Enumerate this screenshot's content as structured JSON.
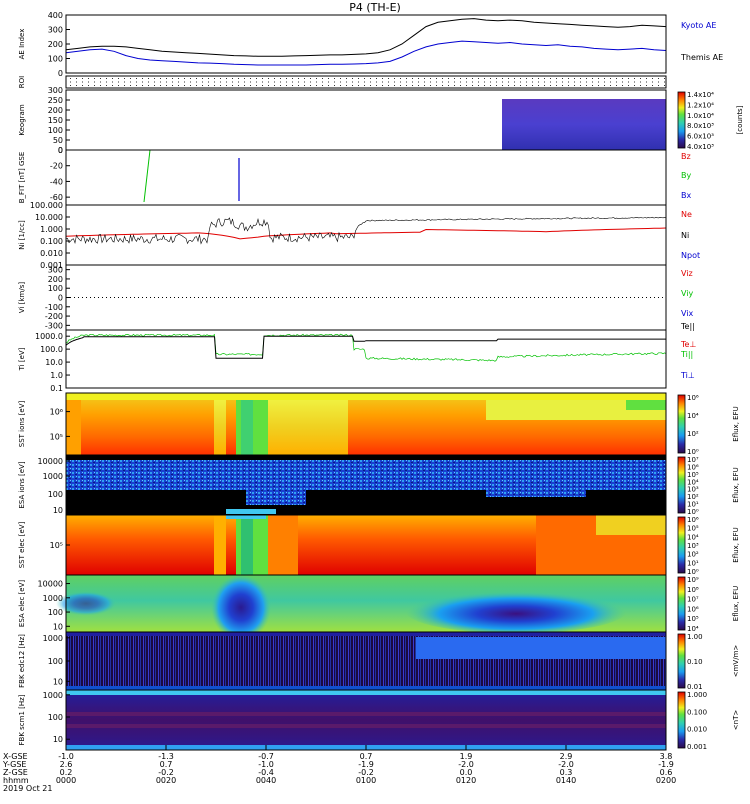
{
  "title": "P4 (TH-E)",
  "colors": {
    "red": "#e00000",
    "green": "#00c000",
    "blue": "#0000d0",
    "black": "#000000",
    "ae_kyoto": "#0000d0",
    "ae_themis": "#000000"
  },
  "chart_data": [
    {
      "id": "ae",
      "type": "line",
      "ylabel": "AE Index",
      "yticks": [
        "0",
        "100",
        "200",
        "300",
        "400"
      ],
      "ylim": [
        0,
        400
      ],
      "legend": [
        "Kyoto AE",
        "Themis AE"
      ],
      "series": [
        {
          "name": "Kyoto AE",
          "color": "#0000d0",
          "x": [
            0,
            2,
            4,
            6,
            8,
            10,
            12,
            14,
            16,
            18,
            20,
            22,
            24,
            26,
            28,
            30,
            32,
            34,
            36,
            38,
            40,
            42,
            44,
            46,
            48,
            50,
            52,
            54,
            56,
            58,
            60,
            62,
            64,
            66,
            68,
            70,
            72,
            74,
            76,
            78,
            80,
            82,
            84,
            86,
            88,
            90,
            92,
            94,
            96,
            98,
            100
          ],
          "values": [
            140,
            150,
            160,
            165,
            150,
            120,
            100,
            90,
            85,
            80,
            75,
            70,
            68,
            65,
            60,
            58,
            55,
            55,
            55,
            55,
            55,
            58,
            60,
            60,
            62,
            65,
            70,
            80,
            110,
            150,
            180,
            200,
            210,
            220,
            215,
            210,
            205,
            210,
            200,
            195,
            190,
            195,
            185,
            180,
            170,
            165,
            160,
            165,
            170,
            160,
            155
          ]
        },
        {
          "name": "Themis AE",
          "color": "#000000",
          "x": [
            0,
            2,
            4,
            6,
            8,
            10,
            12,
            14,
            16,
            18,
            20,
            22,
            24,
            26,
            28,
            30,
            32,
            34,
            36,
            38,
            40,
            42,
            44,
            46,
            48,
            50,
            52,
            54,
            56,
            58,
            60,
            62,
            64,
            66,
            68,
            70,
            72,
            74,
            76,
            78,
            80,
            82,
            84,
            86,
            88,
            90,
            92,
            94,
            96,
            98,
            100
          ],
          "values": [
            160,
            170,
            180,
            185,
            185,
            180,
            170,
            160,
            150,
            145,
            140,
            135,
            130,
            125,
            120,
            118,
            115,
            115,
            115,
            118,
            120,
            122,
            125,
            125,
            128,
            132,
            140,
            160,
            200,
            260,
            320,
            350,
            360,
            370,
            375,
            365,
            360,
            365,
            360,
            350,
            345,
            340,
            335,
            330,
            325,
            320,
            315,
            320,
            330,
            325,
            320
          ]
        }
      ]
    },
    {
      "id": "roi",
      "type": "scatter",
      "ylabel": "ROI",
      "yticks": []
    },
    {
      "id": "keogram",
      "type": "heatmap",
      "ylabel": "Keogram",
      "yticks": [
        "0",
        "50",
        "100",
        "150",
        "200",
        "250",
        "300"
      ],
      "ylim": [
        0,
        300
      ],
      "colorbar": {
        "label": "[counts]",
        "ticks": [
          "4.0x10³",
          "6.0x10³",
          "8.0x10³",
          "1.0x10⁴",
          "1.2x10⁴",
          "1.4x10⁴"
        ]
      }
    },
    {
      "id": "bfield",
      "type": "line",
      "ylabel": "B_FIT [nT] GSE",
      "yticks": [
        "-60",
        "-40",
        "-20",
        "0"
      ],
      "ylim": [
        -70,
        0
      ],
      "legend": [
        "Bz",
        "By",
        "Bx"
      ]
    },
    {
      "id": "density",
      "type": "line",
      "ylabel": "Ni [1/cc]",
      "yticks": [
        "0.001",
        "0.010",
        "0.100",
        "1.000",
        "10.000",
        "100.000"
      ],
      "ylim": [
        0.001,
        100
      ],
      "scale": "log",
      "legend": [
        "Ne",
        "Ni",
        "Npot"
      ]
    },
    {
      "id": "velocity",
      "type": "line",
      "ylabel": "Vi [km/s]",
      "yticks": [
        "-300",
        "-200",
        "-100",
        "0",
        "100",
        "200",
        "300"
      ],
      "ylim": [
        -350,
        350
      ],
      "legend": [
        "Viz",
        "Viy",
        "Vix"
      ]
    },
    {
      "id": "temperature",
      "type": "line",
      "ylabel": "Ti [eV]",
      "yticks": [
        "0.1",
        "1.0",
        "10.0",
        "100.0",
        "1000.0"
      ],
      "ylim": [
        0.1,
        3000
      ],
      "scale": "log",
      "legend": [
        "Te||",
        "Te⊥",
        "Ti||",
        "Ti⊥"
      ]
    },
    {
      "id": "sst_ion",
      "type": "heatmap",
      "ylabel": "SST ions [eV]",
      "yticks": [
        "10⁵",
        "10⁶"
      ],
      "colorbar": {
        "label": "Eflux, EFU",
        "ticks": [
          "10⁰",
          "10²",
          "10⁴",
          "10⁶"
        ]
      }
    },
    {
      "id": "esa_ion",
      "type": "heatmap",
      "ylabel": "ESA ions [eV]",
      "yticks": [
        "10",
        "100",
        "1000",
        "10000"
      ],
      "colorbar": {
        "label": "Eflux, EFU",
        "ticks": [
          "10⁰",
          "10¹",
          "10²",
          "10³",
          "10⁴",
          "10⁵",
          "10⁶",
          "10⁷"
        ]
      }
    },
    {
      "id": "sst_elec",
      "type": "heatmap",
      "ylabel": "SST elec [eV]",
      "yticks": [
        "10⁵"
      ],
      "colorbar": {
        "label": "Eflux, EFU",
        "ticks": [
          "10⁰",
          "10¹",
          "10²",
          "10³",
          "10⁴",
          "10⁵",
          "10⁶"
        ]
      }
    },
    {
      "id": "esa_elec",
      "type": "heatmap",
      "ylabel": "ESA elec [eV]",
      "yticks": [
        "10",
        "100",
        "1000",
        "10000"
      ],
      "colorbar": {
        "label": "Eflux, EFU",
        "ticks": [
          "10⁴",
          "10⁵",
          "10⁶",
          "10⁷",
          "10⁸",
          "10⁹"
        ]
      }
    },
    {
      "id": "fbk_edc",
      "type": "heatmap",
      "ylabel": "FBK edc12 [Hz]",
      "yticks": [
        "10",
        "100",
        "1000"
      ],
      "colorbar": {
        "label": "<mV/m>",
        "ticks": [
          "0.01",
          "0.10",
          "1.00"
        ]
      }
    },
    {
      "id": "fbk_scm",
      "type": "heatmap",
      "ylabel": "FBK scm1 [Hz]",
      "yticks": [
        "10",
        "100",
        "1000"
      ],
      "colorbar": {
        "label": "<nT>",
        "ticks": [
          "0.001",
          "0.010",
          "0.100",
          "1.000"
        ]
      }
    }
  ],
  "time_axis": {
    "row_labels": [
      "X-GSE",
      "Y-GSE",
      "Z-GSE",
      "hhmm",
      "2019 Oct 21"
    ],
    "ticks": [
      {
        "x": "-1.0",
        "y": "2.6",
        "z": "0.2",
        "t": "0000"
      },
      {
        "x": "-1.3",
        "y": "0.7",
        "z": "-0.2",
        "t": "0020"
      },
      {
        "x": "-0.7",
        "y": "-1.0",
        "z": "-0.4",
        "t": "0040"
      },
      {
        "x": "0.7",
        "y": "-1.9",
        "z": "-0.2",
        "t": "0100"
      },
      {
        "x": "1.9",
        "y": "-2.0",
        "z": "0.0",
        "t": "0120"
      },
      {
        "x": "2.9",
        "y": "-2.0",
        "z": "0.3",
        "t": "0140"
      },
      {
        "x": "3.8",
        "y": "-1.9",
        "z": "0.6",
        "t": "0200"
      }
    ]
  }
}
